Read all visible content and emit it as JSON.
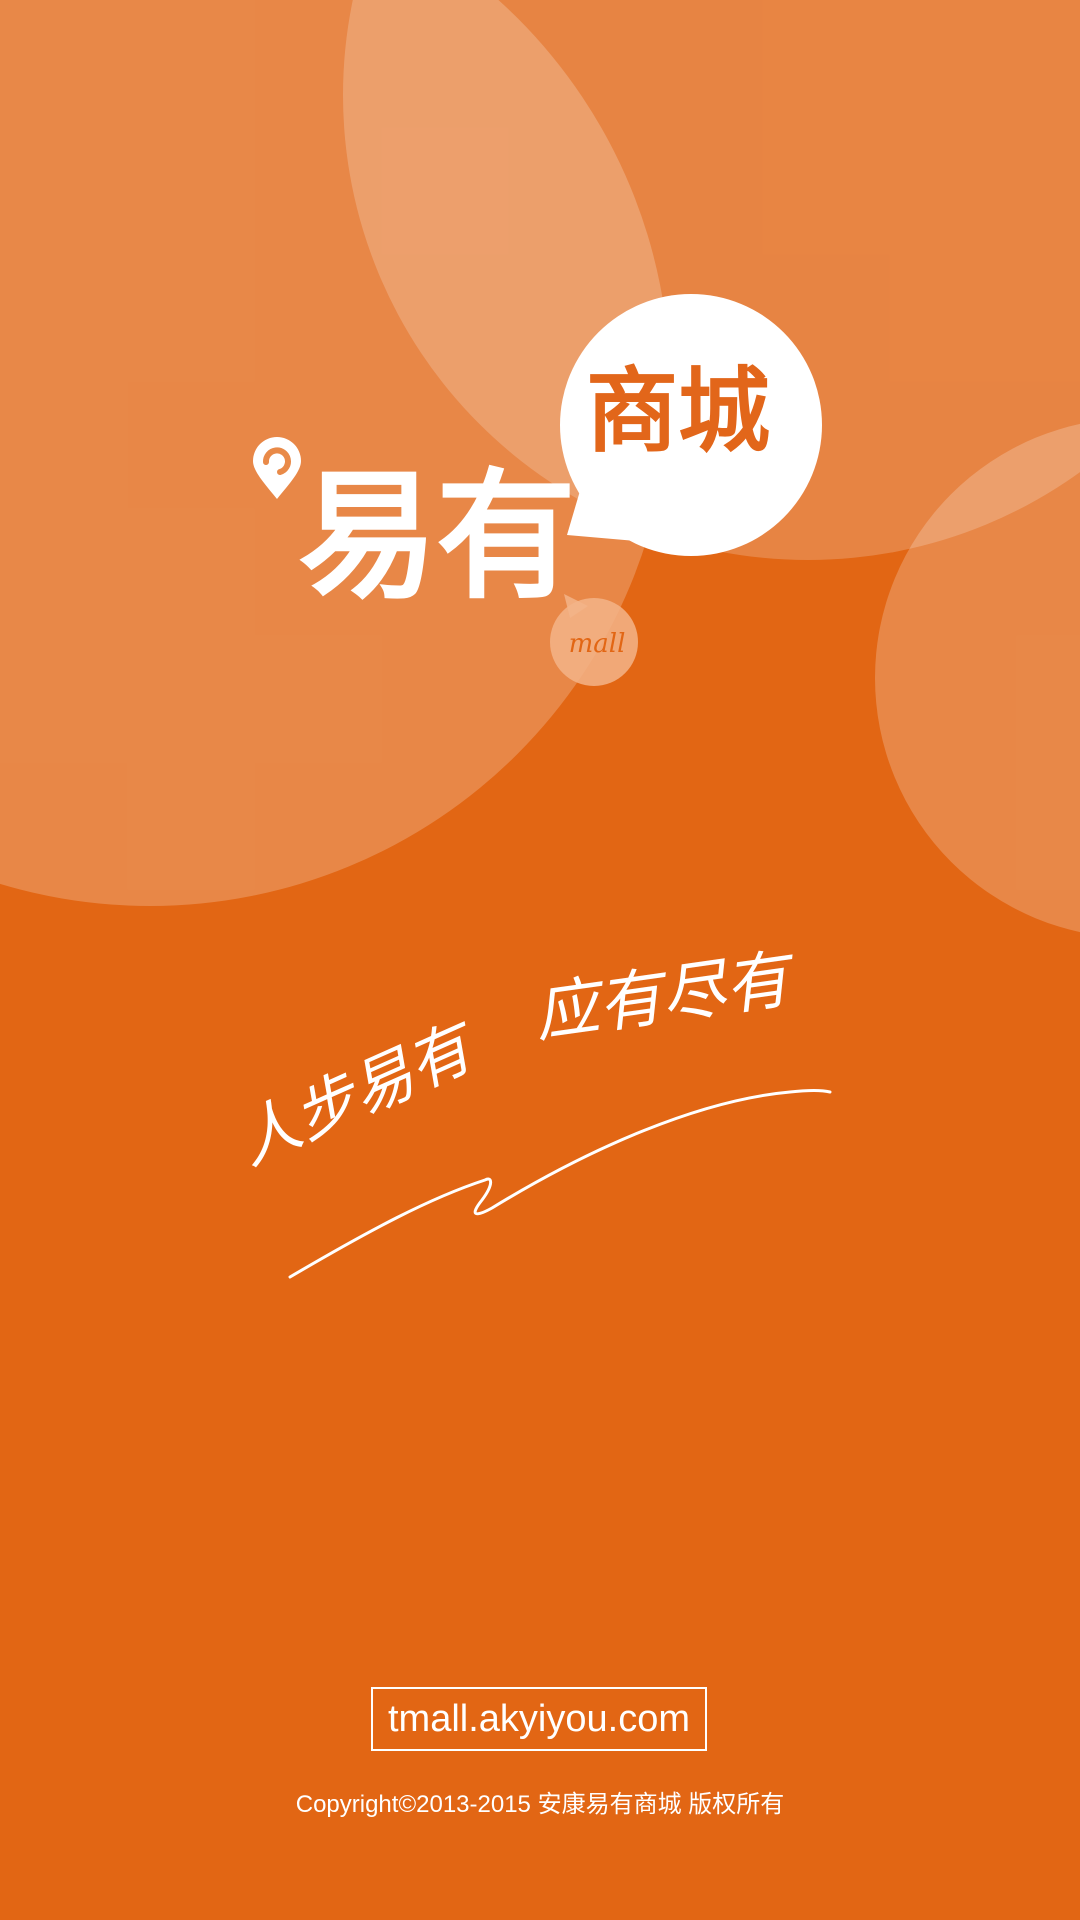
{
  "brand": {
    "name": "易有",
    "badge": "商城",
    "sub": "mall",
    "accent": "#e26614",
    "highlight": "#ffffff"
  },
  "slogan": {
    "part1": "人步易有",
    "part2": "应有尽有"
  },
  "footer": {
    "website": "tmall.akyiyou.com",
    "copyright": "Copyright©2013-2015 安康易有商城   版权所有"
  }
}
